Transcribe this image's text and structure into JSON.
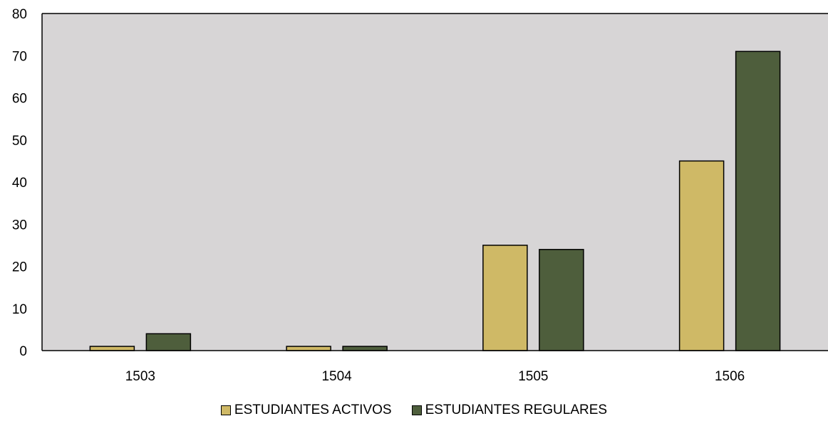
{
  "chart_data": {
    "type": "bar",
    "categories": [
      "1503",
      "1504",
      "1505",
      "1506"
    ],
    "series": [
      {
        "name": "ESTUDIANTES ACTIVOS",
        "values": [
          1,
          1,
          25,
          45
        ],
        "color": "#cfb966"
      },
      {
        "name": "ESTUDIANTES REGULARES",
        "values": [
          4,
          1,
          24,
          71
        ],
        "color": "#4e5e3c"
      }
    ],
    "ylim": [
      0,
      80
    ],
    "yticks": [
      "0",
      "10",
      "20",
      "30",
      "40",
      "50",
      "60",
      "70",
      "80"
    ],
    "plot_background": "#d7d5d6",
    "grid": false,
    "legend_position": "bottom"
  }
}
